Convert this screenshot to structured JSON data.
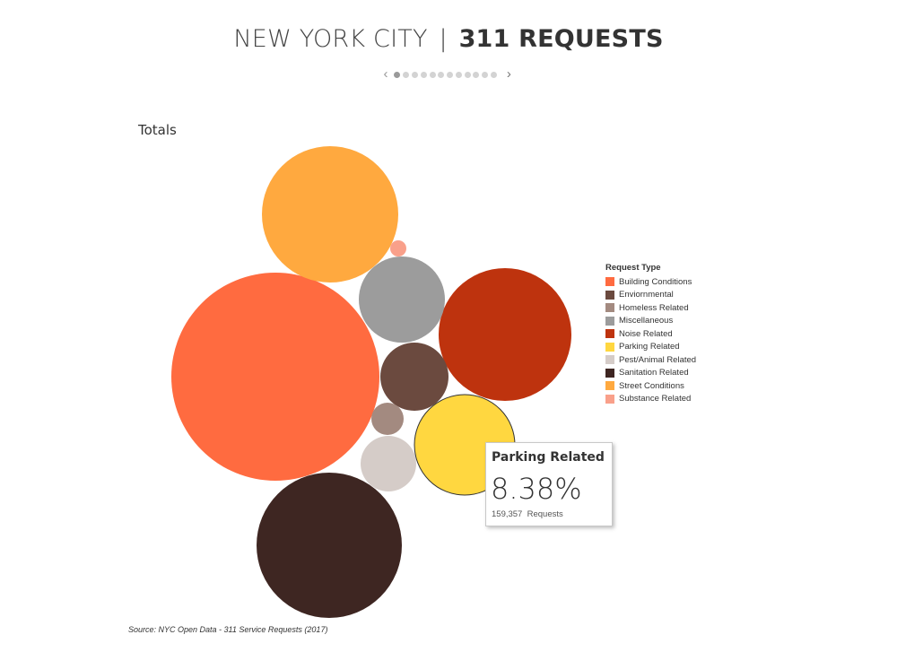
{
  "title": {
    "light": "NEW YORK CITY",
    "separator": "|",
    "bold": "311 REQUESTS"
  },
  "pager": {
    "total_dots": 12,
    "active_index": 0,
    "prev_icon": "chevron-left-icon",
    "next_icon": "chevron-right-icon"
  },
  "section_label": "Totals",
  "legend": {
    "title": "Request Type",
    "items": [
      {
        "label": "Building Conditions",
        "color": "#ff6b40"
      },
      {
        "label": "Enviornmental",
        "color": "#6b4a3f"
      },
      {
        "label": "Homeless Related",
        "color": "#a38a80"
      },
      {
        "label": "Miscellaneous",
        "color": "#9c9c9c"
      },
      {
        "label": "Noise Related",
        "color": "#be330e"
      },
      {
        "label": "Parking Related",
        "color": "#ffd740"
      },
      {
        "label": "Pest/Animal Related",
        "color": "#d5ccc8"
      },
      {
        "label": "Sanitation Related",
        "color": "#3e2622"
      },
      {
        "label": "Street Conditions",
        "color": "#ffa93f"
      },
      {
        "label": "Substance Related",
        "color": "#f9a08a"
      }
    ]
  },
  "chart_data": {
    "type": "bubble",
    "title": "Totals",
    "series": [
      {
        "name": "Building Conditions",
        "color": "#ff6b40"
      },
      {
        "name": "Street Conditions",
        "color": "#ffa93f"
      },
      {
        "name": "Sanitation Related",
        "color": "#3e2622"
      },
      {
        "name": "Noise Related",
        "color": "#be330e"
      },
      {
        "name": "Parking Related",
        "color": "#ffd740",
        "share_pct": 8.38,
        "requests": 159357,
        "highlighted": true
      },
      {
        "name": "Miscellaneous",
        "color": "#9c9c9c"
      },
      {
        "name": "Enviornmental",
        "color": "#6b4a3f"
      },
      {
        "name": "Pest/Animal Related",
        "color": "#d5ccc8"
      },
      {
        "name": "Homeless Related",
        "color": "#a38a80"
      },
      {
        "name": "Substance Related",
        "color": "#f9a08a"
      }
    ],
    "legend_title": "Request Type",
    "legend_position": "right"
  },
  "tooltip": {
    "title": "Parking Related",
    "value": "8.38%",
    "count": "159,357",
    "count_label": "Requests"
  },
  "source": "Source: NYC Open Data - 311 Service Requests (2017)"
}
